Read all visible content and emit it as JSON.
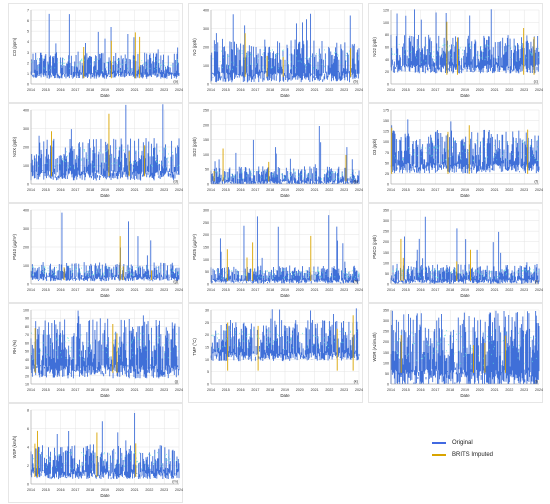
{
  "chart_data": [
    {
      "id": "co",
      "type": "line",
      "ylabel": "CO (ppm)",
      "xlabel": "Date",
      "tag": "(a)",
      "ylim": [
        0,
        7
      ],
      "yticks": [
        0,
        1,
        2,
        3,
        4,
        5,
        6,
        7
      ],
      "baseline": 1.8,
      "spread": 1.2,
      "peak": 6.8,
      "series": [
        {
          "name": "Original",
          "color": "#4169e1"
        },
        {
          "name": "BRITS Imputed",
          "color": "#d9a400"
        }
      ]
    },
    {
      "id": "no",
      "type": "line",
      "ylabel": "NO (ppb)",
      "xlabel": "Date",
      "tag": "(b)",
      "ylim": [
        0,
        400
      ],
      "yticks": [
        0,
        100,
        200,
        300,
        400
      ],
      "baseline": 130,
      "spread": 110,
      "peak": 390,
      "series": [
        {
          "name": "Original",
          "color": "#4169e1"
        },
        {
          "name": "BRITS Imputed",
          "color": "#d9a400"
        }
      ]
    },
    {
      "id": "no2",
      "type": "line",
      "ylabel": "NO2 (ppb)",
      "xlabel": "Date",
      "tag": "(c)",
      "ylim": [
        0,
        120
      ],
      "yticks": [
        0,
        20,
        40,
        60,
        80,
        100,
        120
      ],
      "baseline": 50,
      "spread": 30,
      "peak": 122,
      "series": [
        {
          "name": "Original",
          "color": "#4169e1"
        },
        {
          "name": "BRITS Imputed",
          "color": "#d9a400"
        }
      ]
    },
    {
      "id": "nox",
      "type": "line",
      "ylabel": "NOX (ppb)",
      "xlabel": "Date",
      "tag": "(d)",
      "ylim": [
        0,
        400
      ],
      "yticks": [
        0,
        100,
        200,
        300,
        400
      ],
      "baseline": 140,
      "spread": 110,
      "peak": 440,
      "series": [
        {
          "name": "Original",
          "color": "#4169e1"
        },
        {
          "name": "BRITS Imputed",
          "color": "#d9a400"
        }
      ]
    },
    {
      "id": "so2",
      "type": "line",
      "ylabel": "SO2 (ppb)",
      "xlabel": "Date",
      "tag": "(e)",
      "ylim": [
        0,
        250
      ],
      "yticks": [
        0,
        50,
        100,
        150,
        200,
        250
      ],
      "baseline": 30,
      "spread": 30,
      "peak": 200,
      "series": [
        {
          "name": "Original",
          "color": "#4169e1"
        },
        {
          "name": "BRITS Imputed",
          "color": "#d9a400"
        }
      ]
    },
    {
      "id": "o3",
      "type": "line",
      "ylabel": "O3 (ppb)",
      "xlabel": "Date",
      "tag": "(f)",
      "ylim": [
        0,
        175
      ],
      "yticks": [
        0,
        25,
        50,
        75,
        100,
        125,
        150,
        175
      ],
      "baseline": 80,
      "spread": 50,
      "peak": 160,
      "series": [
        {
          "name": "Original",
          "color": "#4169e1"
        },
        {
          "name": "BRITS Imputed",
          "color": "#d9a400"
        }
      ]
    },
    {
      "id": "pm10",
      "type": "line",
      "ylabel": "PM10 (µg/m³)",
      "xlabel": "Date",
      "tag": "(g)",
      "ylim": [
        0,
        400
      ],
      "yticks": [
        0,
        100,
        200,
        300,
        400
      ],
      "baseline": 70,
      "spread": 50,
      "peak": 400,
      "series": [
        {
          "name": "Original",
          "color": "#4169e1"
        },
        {
          "name": "BRITS Imputed",
          "color": "#d9a400"
        }
      ]
    },
    {
      "id": "pm25",
      "type": "line",
      "ylabel": "PM25 (µg/m³)",
      "xlabel": "Date",
      "tag": "(h)",
      "ylim": [
        0,
        300
      ],
      "yticks": [
        0,
        50,
        100,
        150,
        200,
        250,
        300
      ],
      "baseline": 40,
      "spread": 35,
      "peak": 280,
      "series": [
        {
          "name": "Original",
          "color": "#4169e1"
        },
        {
          "name": "BRITS Imputed",
          "color": "#d9a400"
        }
      ]
    },
    {
      "id": "pmco",
      "type": "line",
      "ylabel": "PMCO (ppb)",
      "xlabel": "Date",
      "tag": "(i)",
      "ylim": [
        0,
        350
      ],
      "yticks": [
        0,
        50,
        100,
        150,
        200,
        250,
        300,
        350
      ],
      "baseline": 50,
      "spread": 45,
      "peak": 350,
      "series": [
        {
          "name": "Original",
          "color": "#4169e1"
        },
        {
          "name": "BRITS Imputed",
          "color": "#d9a400"
        }
      ]
    },
    {
      "id": "rh",
      "type": "line",
      "ylabel": "RH (%)",
      "xlabel": "Date",
      "tag": "(j)",
      "ylim": [
        10,
        100
      ],
      "yticks": [
        10,
        20,
        30,
        40,
        50,
        60,
        70,
        80,
        90,
        100
      ],
      "baseline": 55,
      "spread": 35,
      "peak": 100,
      "series": [
        {
          "name": "Original",
          "color": "#4169e1"
        },
        {
          "name": "BRITS Imputed",
          "color": "#d9a400"
        }
      ]
    },
    {
      "id": "tmp",
      "type": "line",
      "ylabel": "TMP (°C)",
      "xlabel": "Date",
      "tag": "(k)",
      "ylim": [
        0,
        30
      ],
      "yticks": [
        0,
        5,
        10,
        15,
        20,
        25,
        30
      ],
      "baseline": 18,
      "spread": 8,
      "peak": 31,
      "series": [
        {
          "name": "Original",
          "color": "#4169e1"
        },
        {
          "name": "BRITS Imputed",
          "color": "#d9a400"
        }
      ]
    },
    {
      "id": "wdr",
      "type": "line",
      "ylabel": "WDR (Azimuth)",
      "xlabel": "Date",
      "tag": "(l)",
      "ylim": [
        0,
        350
      ],
      "yticks": [
        0,
        50,
        100,
        150,
        200,
        250,
        300,
        350
      ],
      "baseline": 175,
      "spread": 175,
      "peak": 360,
      "series": [
        {
          "name": "Original",
          "color": "#4169e1"
        },
        {
          "name": "BRITS Imputed",
          "color": "#d9a400"
        }
      ]
    },
    {
      "id": "wsp",
      "type": "line",
      "ylabel": "WSP (km/h)",
      "xlabel": "Date",
      "tag": "(m)",
      "ylim": [
        0,
        8
      ],
      "yticks": [
        0,
        2,
        4,
        6,
        8
      ],
      "baseline": 2.5,
      "spread": 1.8,
      "peak": 8.5,
      "series": [
        {
          "name": "Original",
          "color": "#4169e1"
        },
        {
          "name": "BRITS Imputed",
          "color": "#d9a400"
        }
      ]
    }
  ],
  "x_tick_labels": [
    "2014",
    "2015",
    "2016",
    "2017",
    "2018",
    "2019",
    "2020",
    "2021",
    "2022",
    "2023",
    "2024"
  ],
  "legend": {
    "original": "Original",
    "imputed": "BRITS Imputed",
    "original_color": "#4169e1",
    "imputed_color": "#d9a400"
  },
  "colors": {
    "fill": "#3f6fd8",
    "highlight": "#5fe1d8",
    "imputed": "#d9a400"
  }
}
